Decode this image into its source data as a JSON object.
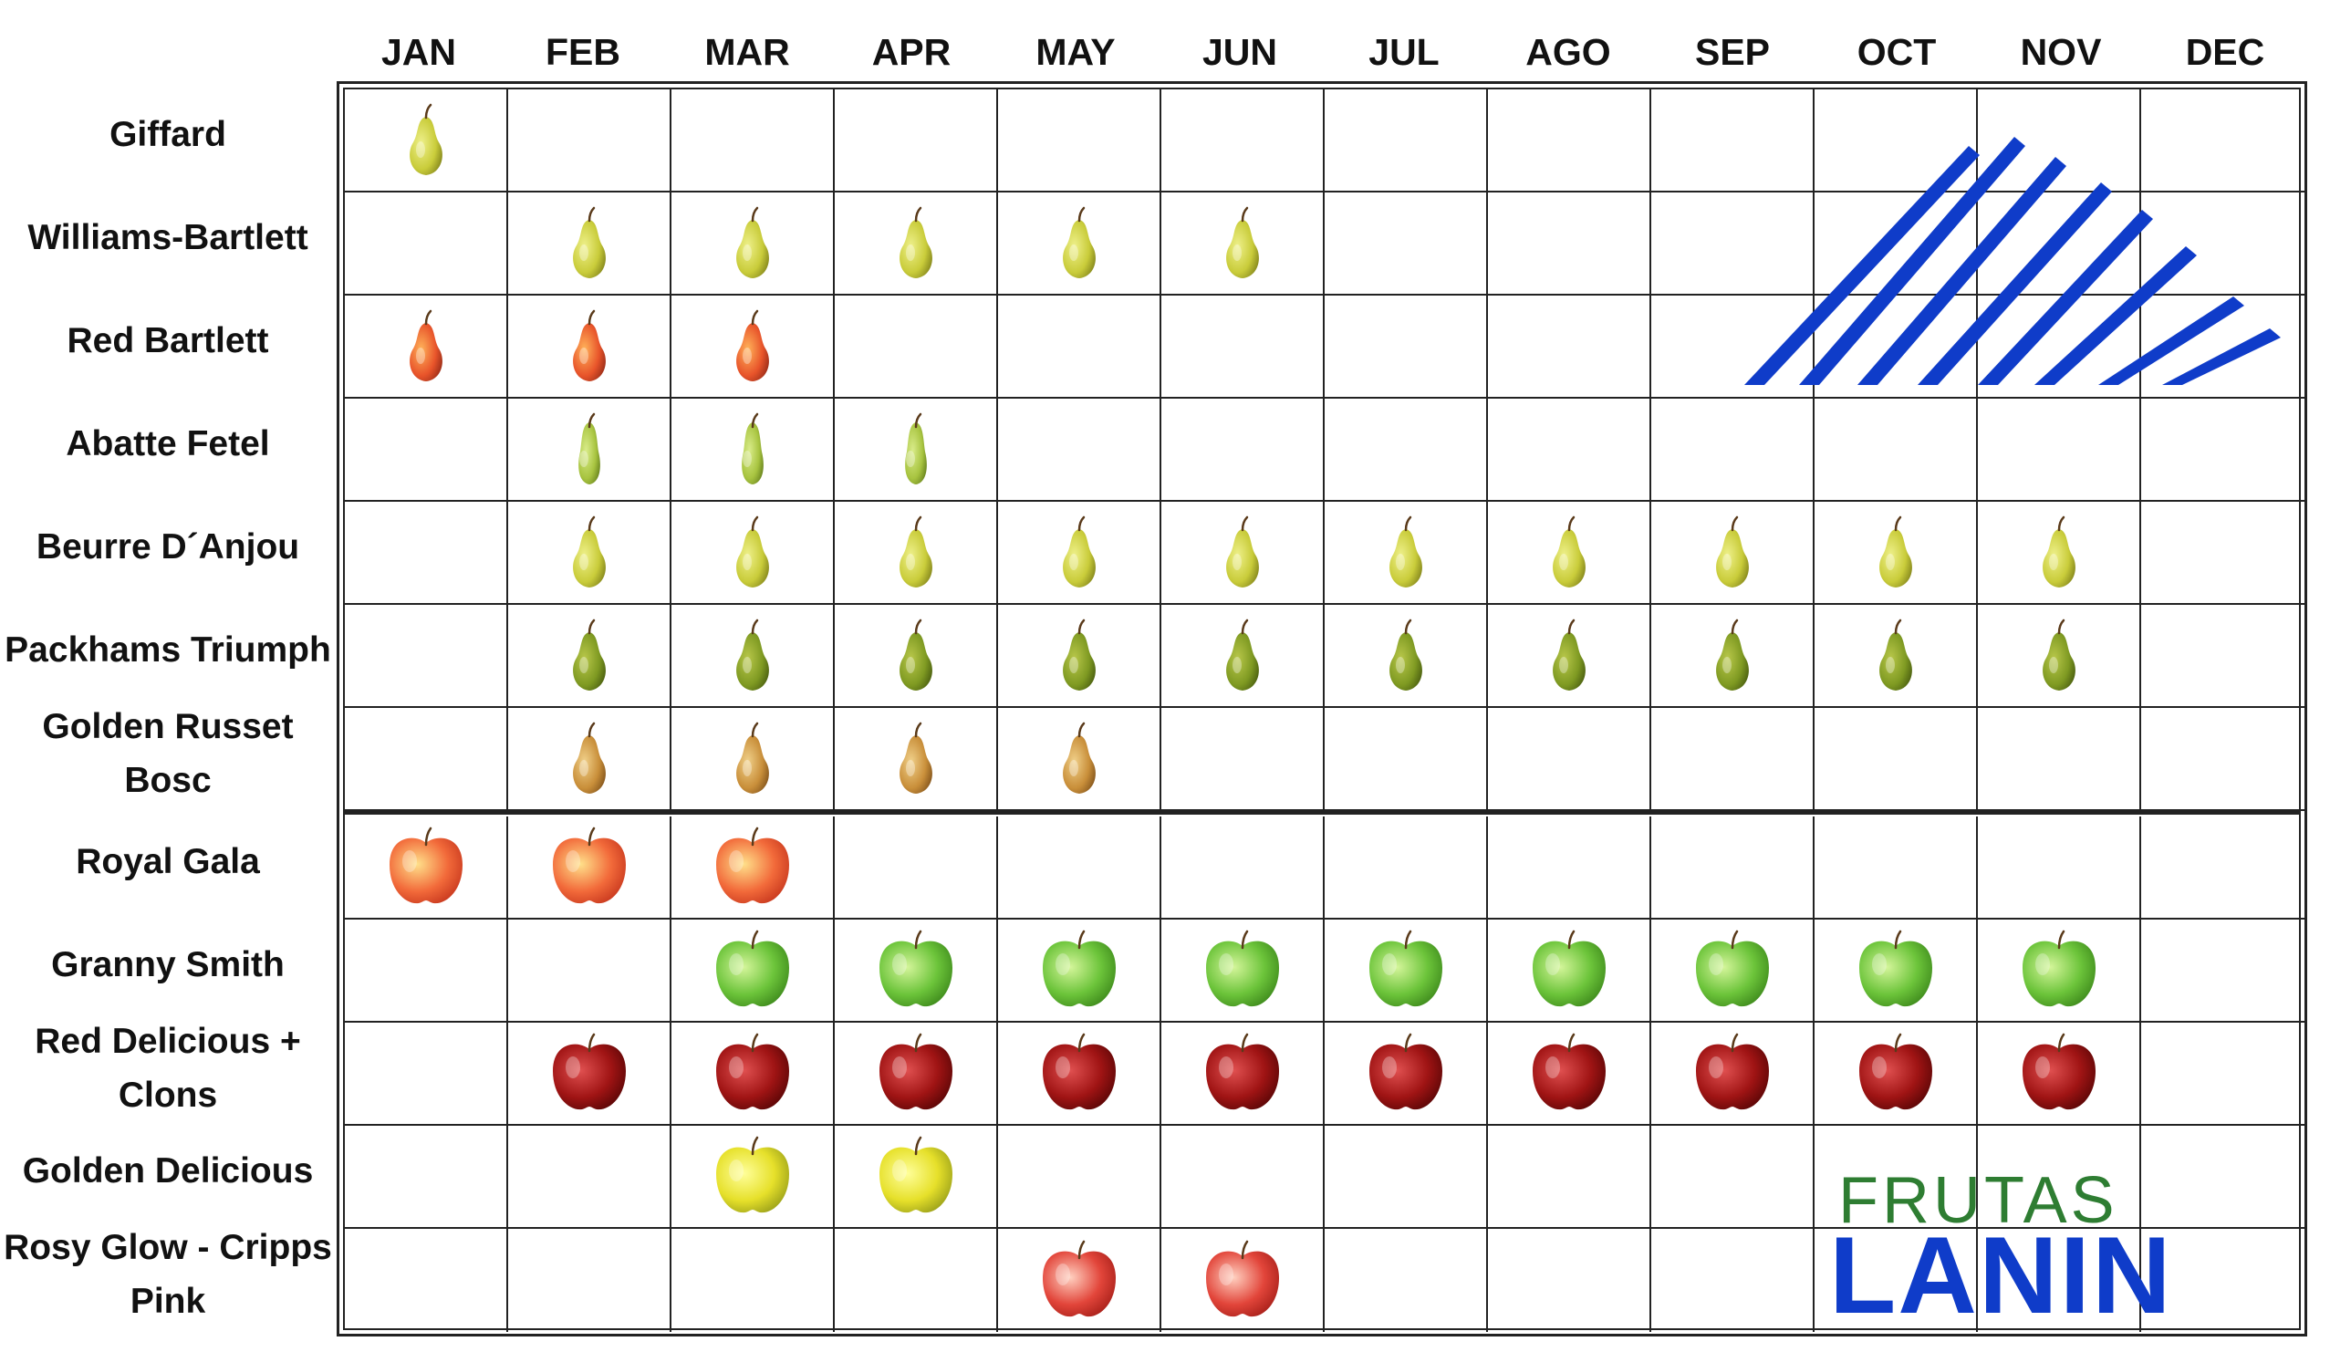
{
  "months": [
    "JAN",
    "FEB",
    "MAR",
    "APR",
    "MAY",
    "JUN",
    "JUL",
    "AGO",
    "SEP",
    "OCT",
    "NOV",
    "DEC"
  ],
  "rows": [
    {
      "label": "Giffard",
      "fruit": "pear-yellow",
      "months": [
        1
      ]
    },
    {
      "label": "Williams-Bartlett",
      "fruit": "pear-yellow",
      "months": [
        2,
        3,
        4,
        5,
        6
      ]
    },
    {
      "label": "Red Bartlett",
      "fruit": "pear-red",
      "months": [
        1,
        2,
        3
      ]
    },
    {
      "label": "Abatte Fetel",
      "fruit": "pear-long",
      "months": [
        2,
        3,
        4
      ]
    },
    {
      "label": "Beurre D´Anjou",
      "fruit": "pear-yellow",
      "months": [
        2,
        3,
        4,
        5,
        6,
        7,
        8,
        9,
        10,
        11
      ]
    },
    {
      "label": "Packhams Triumph",
      "fruit": "pear-green",
      "months": [
        2,
        3,
        4,
        5,
        6,
        7,
        8,
        9,
        10,
        11
      ]
    },
    {
      "label": "Golden Russet Bosc",
      "fruit": "pear-brown",
      "months": [
        2,
        3,
        4,
        5
      ]
    },
    {
      "label": "Royal Gala",
      "fruit": "apple-gala",
      "months": [
        1,
        2,
        3
      ]
    },
    {
      "label": "Granny Smith",
      "fruit": "apple-green",
      "months": [
        3,
        4,
        5,
        6,
        7,
        8,
        9,
        10,
        11
      ]
    },
    {
      "label": "Red Delicious + Clons",
      "fruit": "apple-red",
      "months": [
        2,
        3,
        4,
        5,
        6,
        7,
        8,
        9,
        10,
        11
      ]
    },
    {
      "label": "Golden Delicious",
      "fruit": "apple-yellow",
      "months": [
        3,
        4
      ]
    },
    {
      "label": "Rosy Glow - Cripps Pink",
      "fruit": "apple-pink",
      "months": [
        5,
        6
      ]
    }
  ],
  "logo": {
    "line1": "FRUTAS",
    "line2": "LANIN",
    "line1_color": "#2e7d32",
    "line2_color": "#0f3cc9",
    "mark_color": "#0f3cc9",
    "mark_icon": "lanin-mountain-stripes-icon"
  }
}
